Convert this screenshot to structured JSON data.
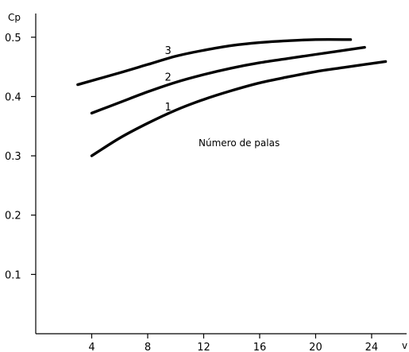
{
  "chart_data": {
    "type": "line",
    "ylabel": "Cp",
    "xlabel": "v",
    "xlim": [
      0,
      26.5
    ],
    "ylim": [
      0,
      0.54
    ],
    "x_ticks": [
      4,
      8,
      12,
      16,
      20,
      24
    ],
    "y_ticks": [
      0.1,
      0.2,
      0.3,
      0.4,
      0.5
    ],
    "y_tick_labels": [
      "0.1",
      "0.2",
      "0.3",
      "0.4",
      "0.5"
    ],
    "grid": false,
    "line_color": "#000000",
    "annotation": "Número de palas",
    "series": [
      {
        "name": "1",
        "x": [
          4,
          6,
          8,
          10,
          12,
          14,
          16,
          18,
          20,
          22,
          25
        ],
        "y": [
          0.3,
          0.33,
          0.355,
          0.377,
          0.395,
          0.41,
          0.423,
          0.433,
          0.442,
          0.449,
          0.459
        ]
      },
      {
        "name": "2",
        "x": [
          4,
          6,
          8,
          10,
          12,
          14,
          16,
          18,
          20,
          23.5
        ],
        "y": [
          0.372,
          0.39,
          0.408,
          0.424,
          0.437,
          0.448,
          0.457,
          0.464,
          0.471,
          0.483
        ]
      },
      {
        "name": "3",
        "x": [
          3,
          6,
          8,
          10,
          12,
          14,
          16,
          18,
          20,
          22.5
        ],
        "y": [
          0.42,
          0.44,
          0.454,
          0.468,
          0.478,
          0.486,
          0.491,
          0.494,
          0.496,
          0.496
        ]
      }
    ]
  }
}
